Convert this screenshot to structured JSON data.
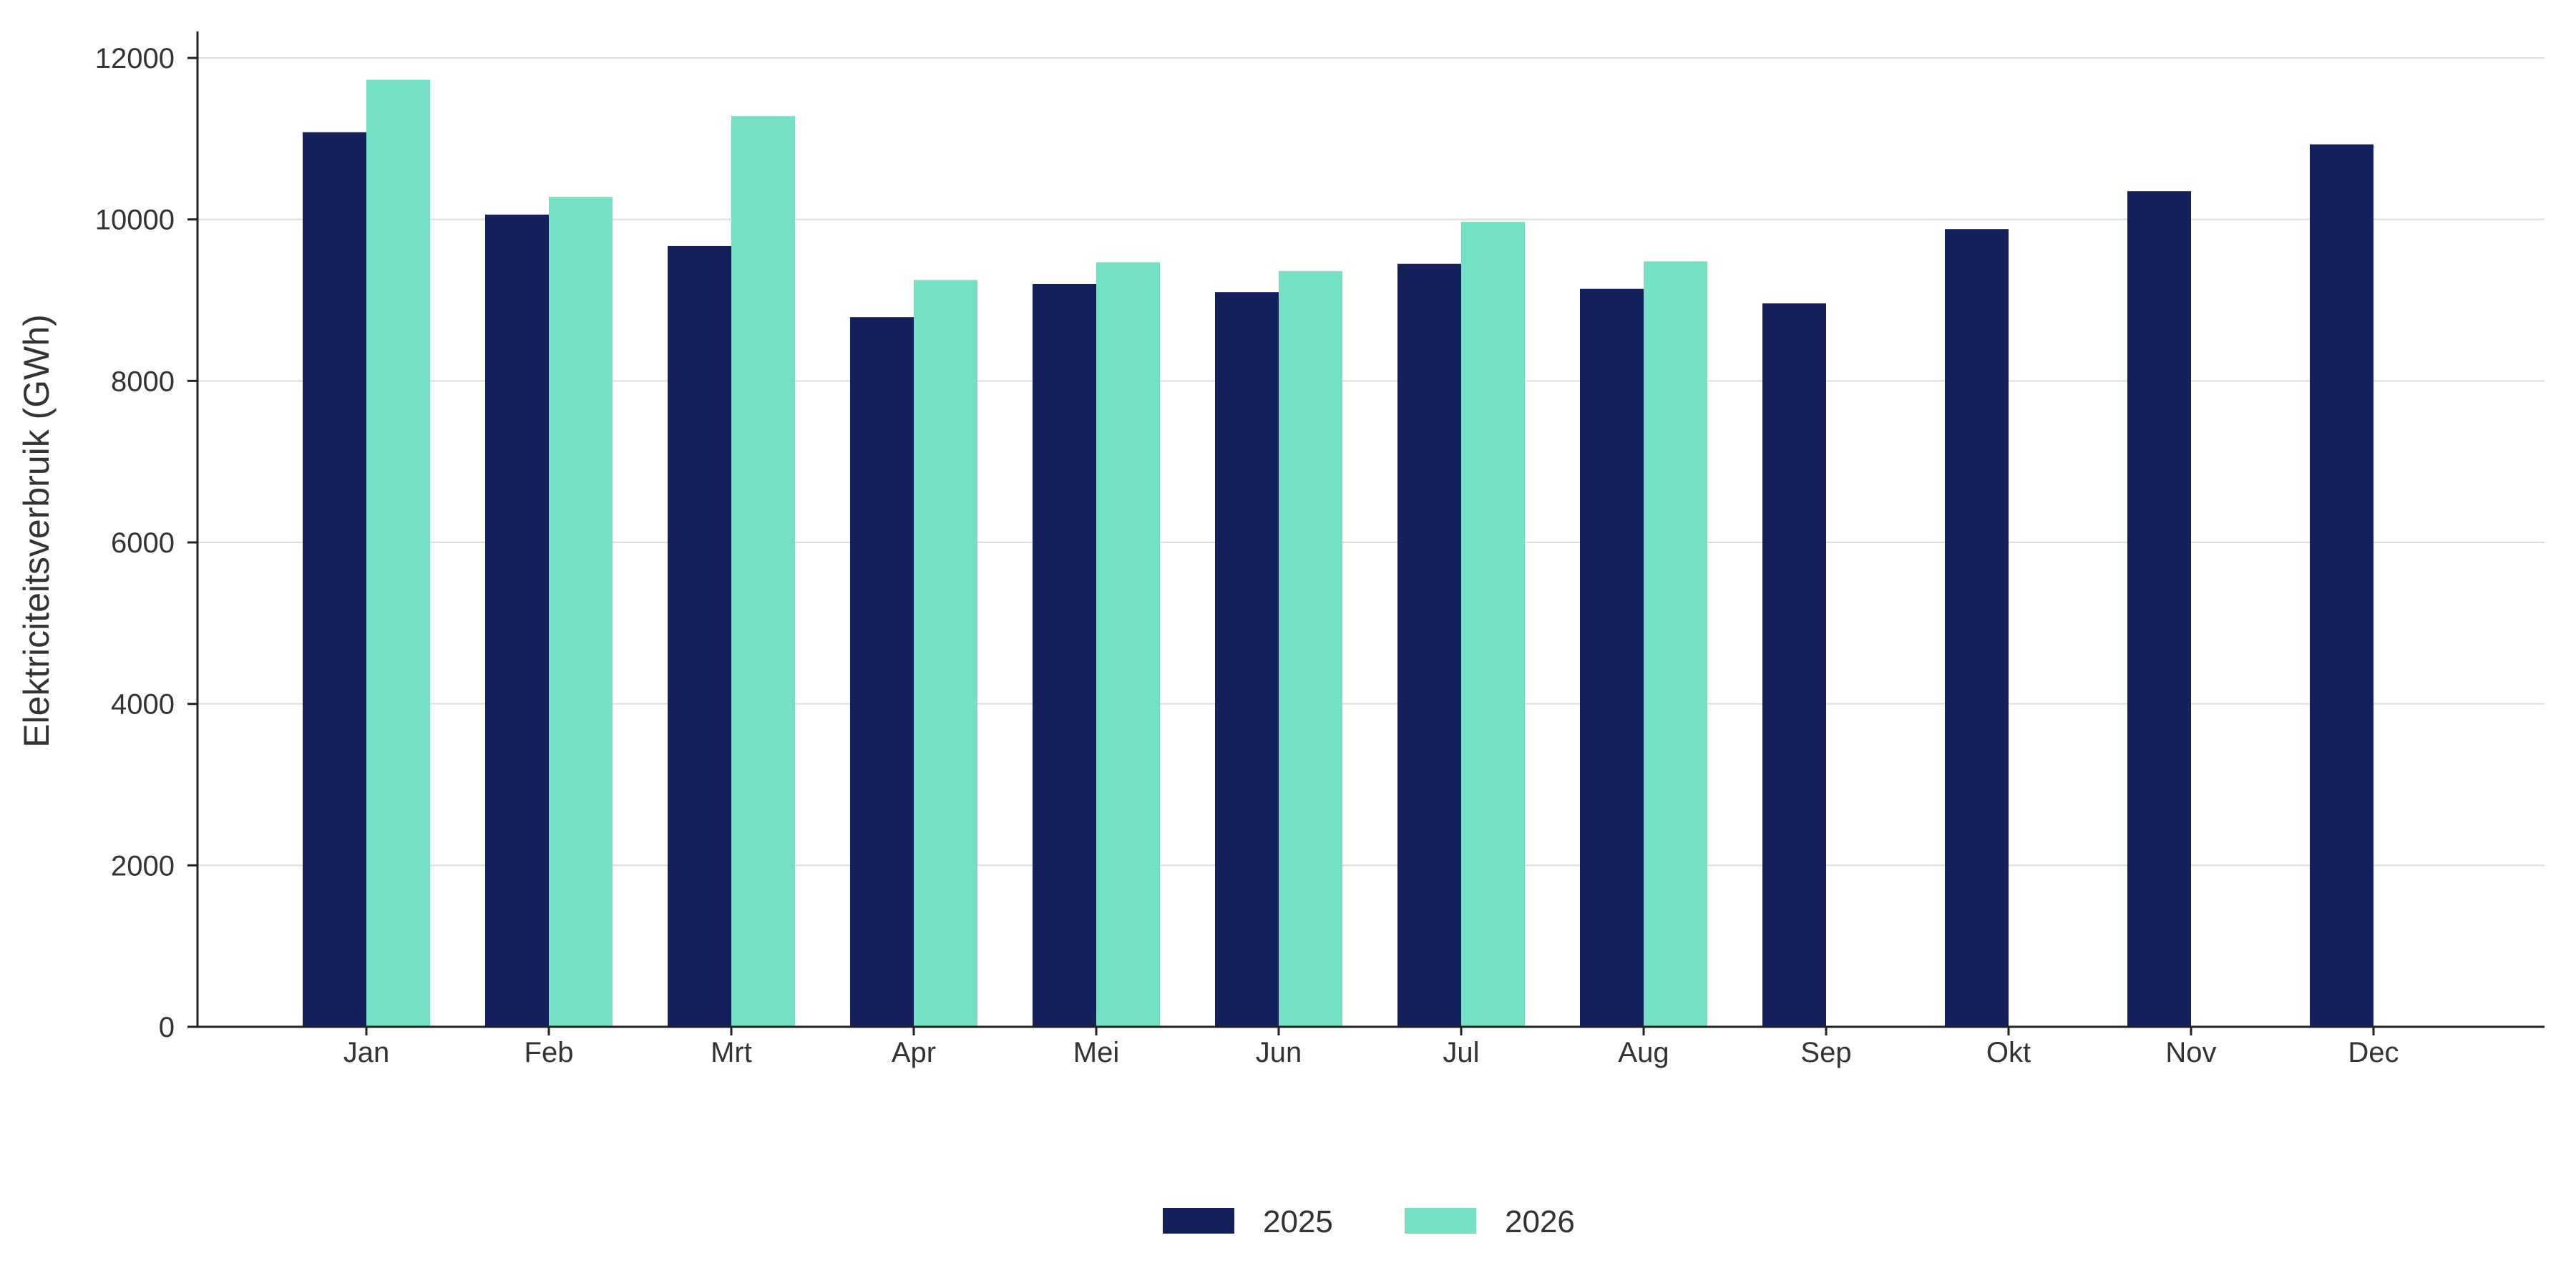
{
  "chart_data": {
    "type": "bar",
    "title": "",
    "xlabel": "",
    "ylabel": "Elektriciteitsverbruik (GWh)",
    "categories": [
      "Jan",
      "Feb",
      "Mrt",
      "Apr",
      "Mei",
      "Jun",
      "Jul",
      "Aug",
      "Sep",
      "Okt",
      "Nov",
      "Dec"
    ],
    "series": [
      {
        "name": "2025",
        "color": "#13205c",
        "values": [
          11080,
          10060,
          9670,
          8790,
          9200,
          9100,
          9450,
          9140,
          8960,
          9880,
          10350,
          10930
        ]
      },
      {
        "name": "2026",
        "color": "#76e0c5",
        "values": [
          11730,
          10280,
          11280,
          9250,
          9470,
          9360,
          9970,
          9480,
          null,
          null,
          null,
          null
        ]
      }
    ],
    "ylim": [
      0,
      12000
    ],
    "yticks": [
      0,
      2000,
      4000,
      6000,
      8000,
      10000,
      12000
    ],
    "grid": true,
    "legend_position": "bottom"
  }
}
